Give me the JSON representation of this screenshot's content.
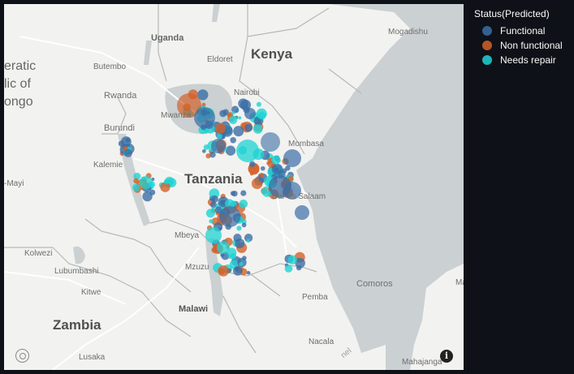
{
  "legend": {
    "title": "Status(Predicted)",
    "items": [
      {
        "label": "Functional",
        "color": "#3b6ea5"
      },
      {
        "label": "Non functional",
        "color": "#d2612a"
      },
      {
        "label": "Needs repair",
        "color": "#1ed3d3"
      }
    ]
  },
  "map_labels": {
    "kenya": "Kenya",
    "tanzania": "Tanzania",
    "zambia": "Zambia",
    "malawi": "Malawi",
    "uganda": "Uganda",
    "mogadishu": "Mogadishu",
    "eldoret": "Eldoret",
    "butembo": "Butembo",
    "rwanda": "Rwanda",
    "nairobi": "Nairobi",
    "mwanza": "Mwanza",
    "burundi": "Burundi",
    "mombasa": "Mombasa",
    "kalemie": "Kalemie",
    "mayi": "-Mayi",
    "daressalaam": "Dar es Salaam",
    "mbeya": "Mbeya",
    "kolwezi": "Kolwezi",
    "lubumbashi": "Lubumbashi",
    "mzuzu": "Mzuzu",
    "kitwe": "Kitwe",
    "comoros": "Comoros",
    "pemba": "Pemba",
    "lusaka": "Lusaka",
    "nacala": "Nacala",
    "mahajanga": "Mahajanga",
    "drc_1": "eratic",
    "drc_2": "lic of",
    "drc_3": "ongo",
    "channel": "nel",
    "ma": "Ma"
  },
  "colors": {
    "functional": "#3b6ea5",
    "non_functional": "#d2612a",
    "needs_repair": "#1ed3d3",
    "water": "#cbd0d2",
    "land": "#f2f2f0"
  },
  "icons": {
    "logo": "mapbox-logo-icon",
    "info": "info-icon"
  }
}
